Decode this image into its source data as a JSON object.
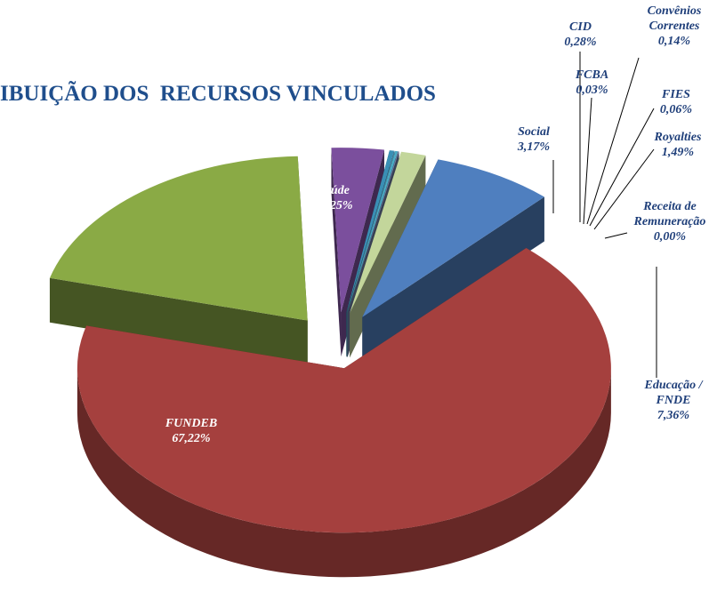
{
  "chart_data": {
    "type": "pie",
    "title": "IBUIÇÃO DOS  RECURSOS VINCULADOS",
    "categories": [
      "Saúde",
      "Social",
      "CID",
      "FCBA",
      "Convênios Correntes",
      "FIES",
      "Royalties",
      "Receita de Remuneração",
      "Educação / FNDE",
      "FUNDEB"
    ],
    "values": [
      20.25,
      3.17,
      0.28,
      0.03,
      0.14,
      0.06,
      1.49,
      0.0,
      7.36,
      67.22
    ],
    "value_labels": [
      "20,25%",
      "3,17%",
      "0,28%",
      "0,03%",
      "0,14%",
      "0,06%",
      "1,49%",
      "0,00%",
      "7,36%",
      "67,22%"
    ],
    "colors": [
      "#8aaa45",
      "#7b4f9d",
      "#3a8fb5",
      "#5fa8c8",
      "#4bacc6",
      "#6f7fa8",
      "#c3d69b",
      "#8c8c9c",
      "#4f7fbf",
      "#a5403e"
    ]
  }
}
